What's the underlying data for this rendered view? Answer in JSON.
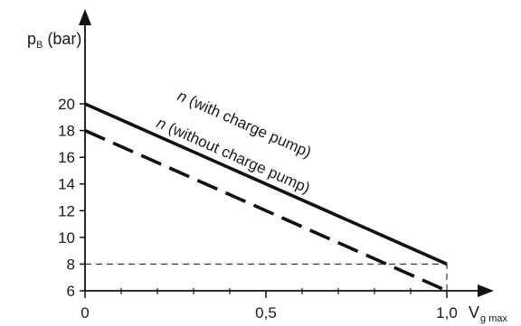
{
  "chart_data": {
    "type": "line",
    "y_axis": {
      "label_main": "p",
      "label_sub": "B",
      "label_unit": "(bar)",
      "ylim": [
        6,
        21.5
      ],
      "ticks": [
        6,
        8,
        10,
        12,
        14,
        16,
        18,
        20
      ],
      "tick_labels": [
        "6",
        "8",
        "10",
        "12",
        "14",
        "16",
        "18",
        "20"
      ]
    },
    "x_axis": {
      "label_main": "V",
      "label_sub": "g max",
      "xlim": [
        0,
        1.1
      ],
      "ticks": [
        0,
        0.5,
        1.0
      ],
      "tick_labels": [
        "0",
        "0,5",
        "1,0"
      ],
      "minor_ticks": [
        0.1,
        0.2,
        0.3,
        0.4,
        0.6,
        0.7,
        0.8,
        0.9
      ]
    },
    "series": [
      {
        "name": "n (with charge pump)",
        "label_italic": "n",
        "label_rest": " (with charge pump)",
        "style": "solid",
        "x": [
          0,
          1.0
        ],
        "y": [
          20,
          8
        ]
      },
      {
        "name": "n (without charge pump)",
        "label_italic": "n",
        "label_rest": " (without charge pump)",
        "style": "dashed",
        "x": [
          0,
          1.0
        ],
        "y": [
          18,
          6
        ]
      }
    ],
    "reference_lines": [
      {
        "from": [
          0,
          8
        ],
        "to": [
          1.0,
          8
        ]
      },
      {
        "from": [
          1.0,
          6
        ],
        "to": [
          1.0,
          8
        ]
      }
    ],
    "grid": false,
    "legend": "none",
    "colors": {
      "line": "#111111",
      "axis": "#111111"
    }
  }
}
